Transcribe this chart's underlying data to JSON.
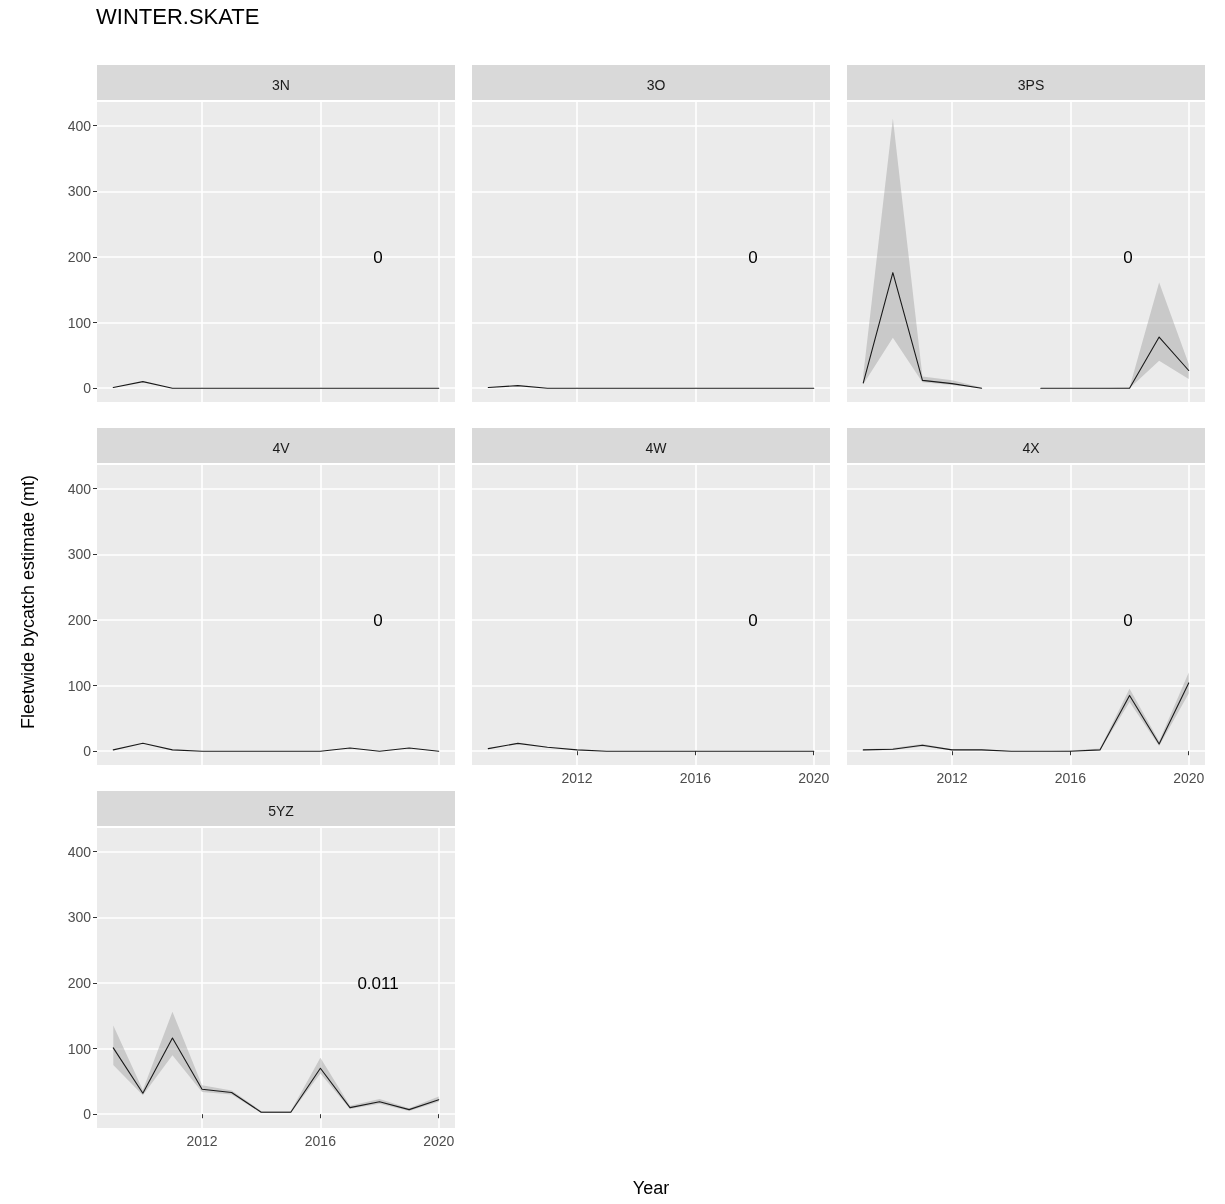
{
  "chart_data": [
    {
      "type": "line",
      "subtitle": "WINTER.SKATE",
      "title": "3N",
      "x": [
        2009,
        2010,
        2011,
        2012,
        2013,
        2014,
        2015,
        2016,
        2017,
        2018,
        2019,
        2020
      ],
      "series": [
        {
          "color": "#1a1a1a",
          "values": [
            1,
            10,
            0,
            0,
            0,
            0,
            0,
            0,
            0,
            0,
            0,
            0
          ]
        }
      ],
      "annotations": [
        "0"
      ],
      "xlim": [
        2008.45,
        2020.55
      ],
      "ylim": [
        -21,
        436
      ],
      "xticks": [
        2012,
        2016,
        2020
      ],
      "yticks": [
        0,
        100,
        200,
        300,
        400
      ],
      "grid": true,
      "tick_labels": "y"
    },
    {
      "type": "line",
      "title": "3O",
      "x": [
        2009,
        2010,
        2011,
        2012,
        2013,
        2014,
        2015,
        2016,
        2017,
        2018,
        2019,
        2020
      ],
      "series": [
        {
          "color": "#1a1a1a",
          "values": [
            1,
            4,
            0,
            0,
            0,
            0,
            0,
            0,
            0,
            0,
            0,
            0
          ]
        }
      ],
      "annotations": [
        "0"
      ],
      "xlim": [
        2008.45,
        2020.55
      ],
      "ylim": [
        -21,
        436
      ],
      "xticks": [
        2012,
        2016,
        2020
      ],
      "yticks": [
        0,
        100,
        200,
        300,
        400
      ],
      "grid": true,
      "tick_labels": false
    },
    {
      "type": "line",
      "title": "3PS",
      "x": [
        2009,
        2010,
        2011,
        2012,
        2013,
        2014,
        2015,
        2016,
        2017,
        2018,
        2019,
        2020
      ],
      "series": [
        {
          "color": "#1a1a1a",
          "values": [
            8,
            176,
            12,
            7,
            0,
            null,
            0,
            0,
            0,
            0,
            78,
            27
          ],
          "lower": [
            6,
            77,
            9,
            5,
            0,
            null,
            0,
            0,
            0,
            0,
            42,
            14
          ],
          "upper": [
            20,
            411,
            18,
            12,
            1,
            null,
            0,
            0,
            0,
            1,
            161,
            37
          ]
        }
      ],
      "annotations": [
        "0"
      ],
      "xlim": [
        2008.45,
        2020.55
      ],
      "ylim": [
        -21,
        436
      ],
      "xticks": [
        2012,
        2016,
        2020
      ],
      "yticks": [
        0,
        100,
        200,
        300,
        400
      ],
      "grid": true,
      "tick_labels": false
    },
    {
      "type": "line",
      "title": "4V",
      "ylabel": "Fleetwide bycatch estimate (mt)",
      "x": [
        2009,
        2010,
        2011,
        2012,
        2013,
        2014,
        2015,
        2016,
        2017,
        2018,
        2019,
        2020
      ],
      "series": [
        {
          "color": "#1a1a1a",
          "values": [
            2,
            12,
            2,
            0,
            0,
            0,
            0,
            0,
            5,
            0,
            5,
            0
          ]
        }
      ],
      "annotations": [
        "0"
      ],
      "xlim": [
        2008.45,
        2020.55
      ],
      "ylim": [
        -21,
        436
      ],
      "xticks": [
        2012,
        2016,
        2020
      ],
      "yticks": [
        0,
        100,
        200,
        300,
        400
      ],
      "grid": true,
      "tick_labels": "y"
    },
    {
      "type": "line",
      "title": "4W",
      "xlabel": "Year",
      "x": [
        2009,
        2010,
        2011,
        2012,
        2013,
        2014,
        2015,
        2016,
        2017,
        2018,
        2019,
        2020
      ],
      "series": [
        {
          "color": "#1a1a1a",
          "values": [
            4,
            12,
            6,
            2,
            0,
            0,
            0,
            0,
            0,
            0,
            0,
            0
          ]
        }
      ],
      "annotations": [
        "0"
      ],
      "xlim": [
        2008.45,
        2020.55
      ],
      "ylim": [
        -21,
        436
      ],
      "xticks": [
        2012,
        2016,
        2020
      ],
      "yticks": [
        0,
        100,
        200,
        300,
        400
      ],
      "grid": true,
      "tick_labels": "x"
    },
    {
      "type": "line",
      "title": "4X",
      "x": [
        2009,
        2010,
        2011,
        2012,
        2013,
        2014,
        2015,
        2016,
        2017,
        2018,
        2019,
        2020
      ],
      "series": [
        {
          "color": "#1a1a1a",
          "values": [
            2,
            3,
            9,
            2,
            2,
            0,
            0,
            0,
            2,
            85,
            11,
            104
          ],
          "lower": [
            1,
            2,
            7,
            1,
            1,
            0,
            0,
            0,
            1,
            75,
            8,
            88
          ],
          "upper": [
            3,
            5,
            11,
            3,
            3,
            0,
            0,
            1,
            4,
            95,
            15,
            120
          ]
        }
      ],
      "annotations": [
        "0"
      ],
      "xlim": [
        2008.45,
        2020.55
      ],
      "ylim": [
        -21,
        436
      ],
      "xticks": [
        2012,
        2016,
        2020
      ],
      "yticks": [
        0,
        100,
        200,
        300,
        400
      ],
      "grid": true,
      "tick_labels": "x"
    },
    {
      "type": "line",
      "title": "5YZ",
      "x": [
        2009,
        2010,
        2011,
        2012,
        2013,
        2014,
        2015,
        2016,
        2017,
        2018,
        2019,
        2020
      ],
      "series": [
        {
          "color": "#1a1a1a",
          "values": [
            101,
            32,
            116,
            38,
            33,
            3,
            3,
            70,
            10,
            19,
            7,
            22
          ],
          "lower": [
            75,
            29,
            90,
            34,
            30,
            2,
            2,
            62,
            8,
            16,
            5,
            19
          ],
          "upper": [
            135,
            37,
            156,
            44,
            36,
            5,
            5,
            86,
            13,
            23,
            9,
            27
          ]
        }
      ],
      "annotations": [
        "0.011"
      ],
      "xlim": [
        2008.45,
        2020.55
      ],
      "ylim": [
        -21,
        436
      ],
      "xticks": [
        2012,
        2016,
        2020
      ],
      "yticks": [
        0,
        100,
        200,
        300,
        400
      ],
      "grid": true
    }
  ]
}
